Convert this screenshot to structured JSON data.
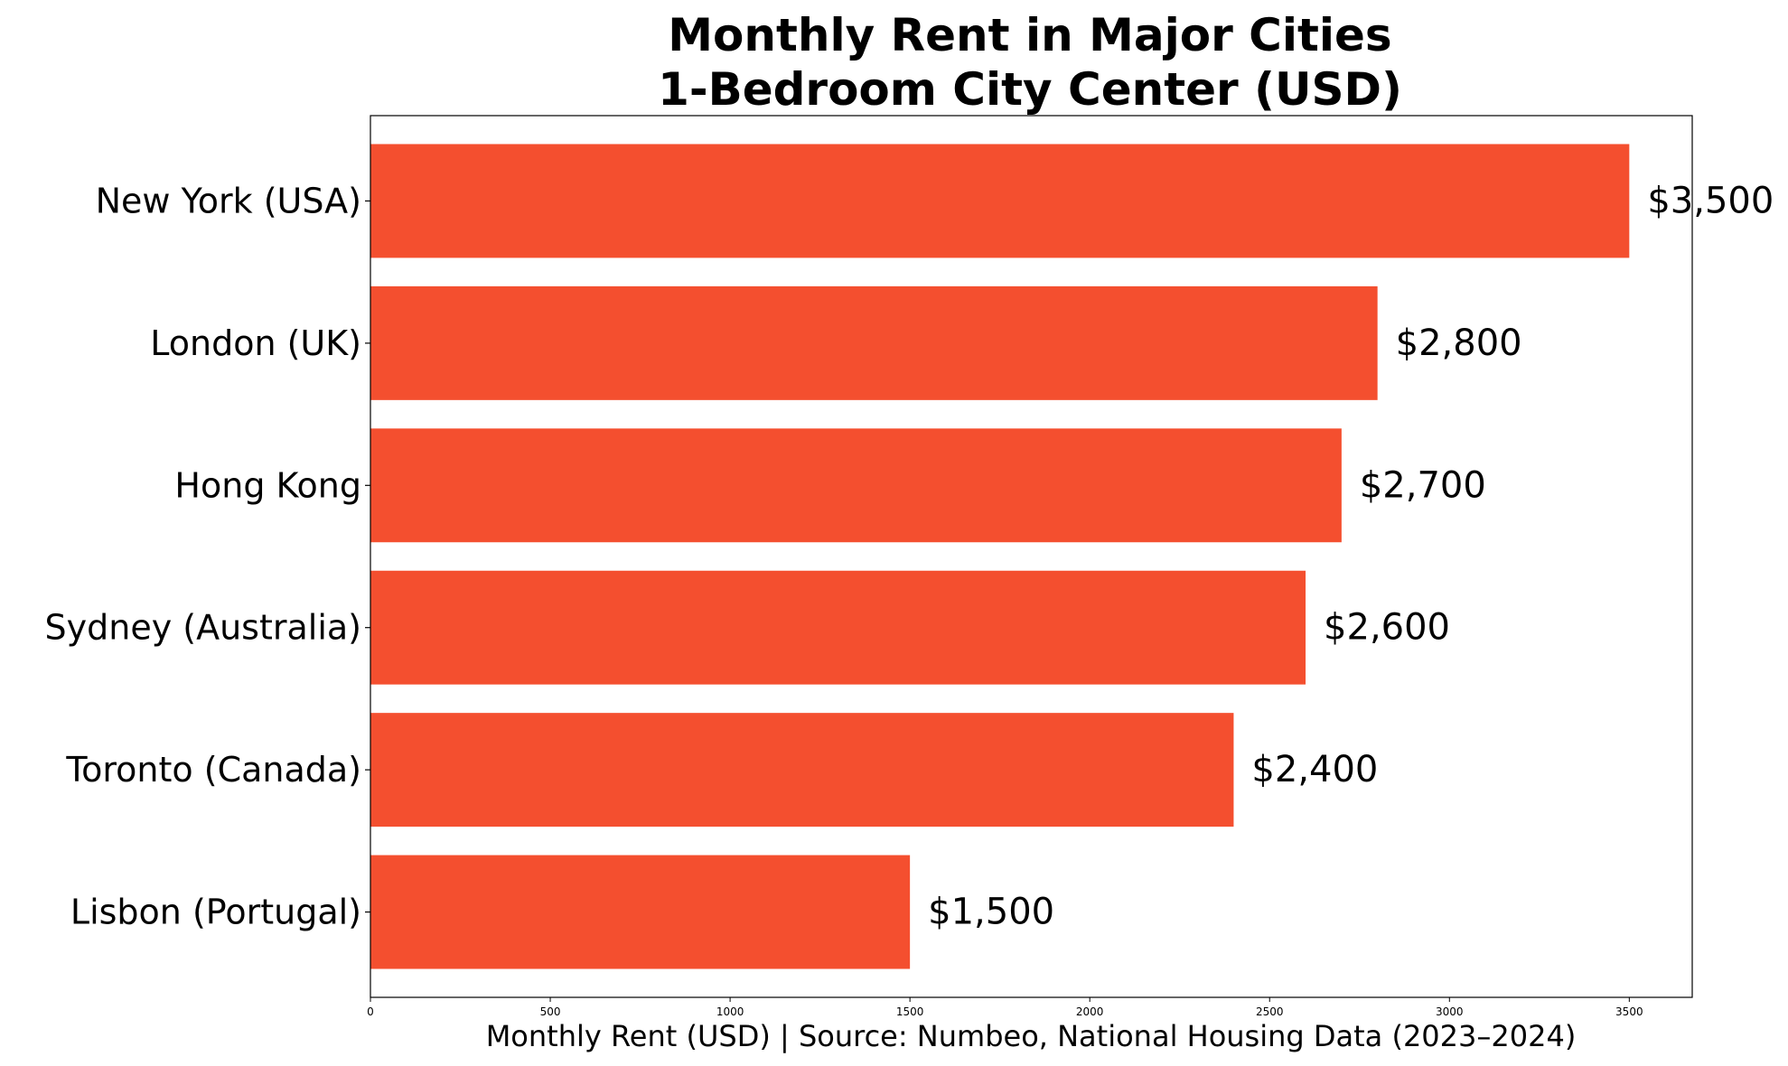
{
  "chart_data": {
    "type": "bar",
    "orientation": "horizontal",
    "title": "Monthly Rent in Major Cities",
    "subtitle": "1-Bedroom City Center (USD)",
    "xlabel": "Monthly Rent (USD) | Source: Numbeo, National Housing Data (2023–2024)",
    "ylabel": "",
    "xlim": [
      0,
      3675
    ],
    "xticks": [
      0,
      500,
      1000,
      1500,
      2000,
      2500,
      3000,
      3500
    ],
    "xtick_labels": [
      "0",
      "500",
      "1000",
      "1500",
      "2000",
      "2500",
      "3000",
      "3500"
    ],
    "categories": [
      "New York (USA)",
      "London (UK)",
      "Hong Kong",
      "Sydney (Australia)",
      "Toronto (Canada)",
      "Lisbon (Portugal)"
    ],
    "values": [
      3500,
      2800,
      2700,
      2600,
      2400,
      1500
    ],
    "value_labels": [
      "$3,500",
      "$2,800",
      "$2,700",
      "$2,600",
      "$2,400",
      "$1,500"
    ],
    "bar_color": "#f44f2f",
    "grid": false,
    "legend": "none"
  }
}
